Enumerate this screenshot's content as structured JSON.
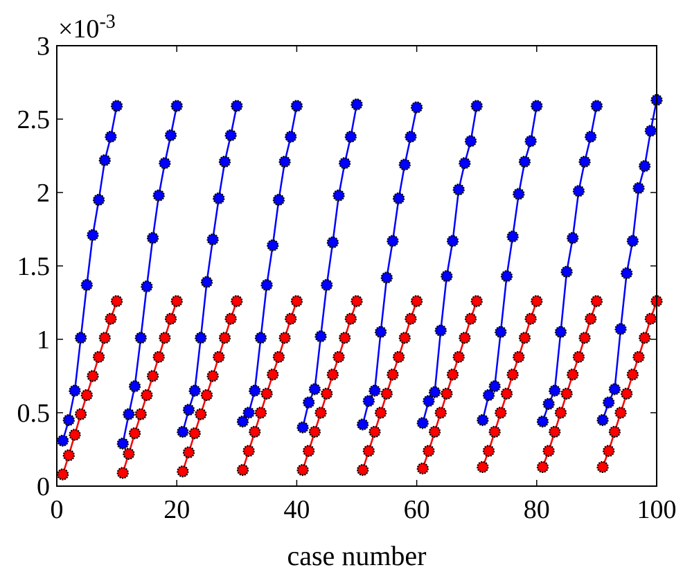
{
  "chart_data": {
    "type": "scatter",
    "title": "",
    "xlabel": "case number",
    "ylabel": "",
    "xlim": [
      0,
      100
    ],
    "ylim": [
      0,
      3
    ],
    "y_exponent_label": "×10",
    "y_exponent_power": "-3",
    "x_ticks": [
      0,
      20,
      40,
      60,
      80,
      100
    ],
    "x_tick_labels": [
      "0",
      "20",
      "40",
      "60",
      "80",
      "100"
    ],
    "y_ticks": [
      0,
      0.5,
      1,
      1.5,
      2,
      2.5,
      3
    ],
    "y_tick_labels": [
      "0",
      "0.5",
      "1",
      "1.5",
      "2",
      "2.5",
      "3"
    ],
    "grid": false,
    "colors": {
      "blue": "#0000ff",
      "red": "#ff0000",
      "marker_edge": "#000000"
    },
    "series": [
      {
        "color": "#0000ff",
        "segments": [
          [
            [
              1,
              0.31
            ],
            [
              2,
              0.45
            ],
            [
              3,
              0.65
            ],
            [
              4,
              1.01
            ],
            [
              5,
              1.37
            ],
            [
              6,
              1.71
            ],
            [
              7,
              1.95
            ],
            [
              8,
              2.22
            ],
            [
              9,
              2.38
            ],
            [
              10,
              2.59
            ]
          ],
          [
            [
              11,
              0.29
            ],
            [
              12,
              0.49
            ],
            [
              13,
              0.68
            ],
            [
              14,
              1.01
            ],
            [
              15,
              1.36
            ],
            [
              16,
              1.69
            ],
            [
              17,
              1.98
            ],
            [
              18,
              2.2
            ],
            [
              19,
              2.39
            ],
            [
              20,
              2.59
            ]
          ],
          [
            [
              21,
              0.37
            ],
            [
              22,
              0.52
            ],
            [
              23,
              0.65
            ],
            [
              24,
              1.01
            ],
            [
              25,
              1.39
            ],
            [
              26,
              1.68
            ],
            [
              27,
              1.96
            ],
            [
              28,
              2.21
            ],
            [
              29,
              2.39
            ],
            [
              30,
              2.59
            ]
          ],
          [
            [
              31,
              0.44
            ],
            [
              32,
              0.5
            ],
            [
              33,
              0.65
            ],
            [
              34,
              1.01
            ],
            [
              35,
              1.37
            ],
            [
              36,
              1.64
            ],
            [
              37,
              1.95
            ],
            [
              38,
              2.21
            ],
            [
              39,
              2.38
            ],
            [
              40,
              2.59
            ]
          ],
          [
            [
              41,
              0.4
            ],
            [
              42,
              0.57
            ],
            [
              43,
              0.66
            ],
            [
              44,
              1.02
            ],
            [
              45,
              1.37
            ],
            [
              46,
              1.66
            ],
            [
              47,
              1.98
            ],
            [
              48,
              2.2
            ],
            [
              49,
              2.38
            ],
            [
              50,
              2.6
            ]
          ],
          [
            [
              51,
              0.42
            ],
            [
              52,
              0.58
            ],
            [
              53,
              0.65
            ],
            [
              54,
              1.05
            ],
            [
              55,
              1.42
            ],
            [
              56,
              1.67
            ],
            [
              57,
              1.96
            ],
            [
              58,
              2.19
            ],
            [
              59,
              2.38
            ],
            [
              60,
              2.58
            ]
          ],
          [
            [
              61,
              0.43
            ],
            [
              62,
              0.58
            ],
            [
              63,
              0.64
            ],
            [
              64,
              1.06
            ],
            [
              65,
              1.43
            ],
            [
              66,
              1.67
            ],
            [
              67,
              2.02
            ],
            [
              68,
              2.2
            ],
            [
              69,
              2.35
            ],
            [
              70,
              2.59
            ]
          ],
          [
            [
              71,
              0.45
            ],
            [
              72,
              0.62
            ],
            [
              73,
              0.68
            ],
            [
              74,
              1.05
            ],
            [
              75,
              1.43
            ],
            [
              76,
              1.7
            ],
            [
              77,
              1.99
            ],
            [
              78,
              2.21
            ],
            [
              79,
              2.35
            ],
            [
              80,
              2.59
            ]
          ],
          [
            [
              81,
              0.44
            ],
            [
              82,
              0.56
            ],
            [
              83,
              0.65
            ],
            [
              84,
              1.05
            ],
            [
              85,
              1.46
            ],
            [
              86,
              1.69
            ],
            [
              87,
              2.01
            ],
            [
              88,
              2.21
            ],
            [
              89,
              2.38
            ],
            [
              90,
              2.59
            ]
          ],
          [
            [
              91,
              0.45
            ],
            [
              92,
              0.57
            ],
            [
              93,
              0.66
            ],
            [
              94,
              1.07
            ],
            [
              95,
              1.45
            ],
            [
              96,
              1.67
            ],
            [
              97,
              2.03
            ],
            [
              98,
              2.18
            ],
            [
              99,
              2.42
            ],
            [
              100,
              2.63
            ]
          ]
        ]
      },
      {
        "color": "#ff0000",
        "segments": [
          [
            [
              1,
              0.08
            ],
            [
              2,
              0.21
            ],
            [
              3,
              0.35
            ],
            [
              4,
              0.49
            ],
            [
              5,
              0.62
            ],
            [
              6,
              0.75
            ],
            [
              7,
              0.88
            ],
            [
              8,
              1.01
            ],
            [
              9,
              1.14
            ],
            [
              10,
              1.26
            ]
          ],
          [
            [
              11,
              0.09
            ],
            [
              12,
              0.22
            ],
            [
              13,
              0.36
            ],
            [
              14,
              0.49
            ],
            [
              15,
              0.62
            ],
            [
              16,
              0.75
            ],
            [
              17,
              0.88
            ],
            [
              18,
              1.01
            ],
            [
              19,
              1.14
            ],
            [
              20,
              1.26
            ]
          ],
          [
            [
              21,
              0.1
            ],
            [
              22,
              0.23
            ],
            [
              23,
              0.36
            ],
            [
              24,
              0.49
            ],
            [
              25,
              0.62
            ],
            [
              26,
              0.75
            ],
            [
              27,
              0.88
            ],
            [
              28,
              1.01
            ],
            [
              29,
              1.14
            ],
            [
              30,
              1.26
            ]
          ],
          [
            [
              31,
              0.11
            ],
            [
              32,
              0.24
            ],
            [
              33,
              0.37
            ],
            [
              34,
              0.5
            ],
            [
              35,
              0.63
            ],
            [
              36,
              0.76
            ],
            [
              37,
              0.88
            ],
            [
              38,
              1.01
            ],
            [
              39,
              1.14
            ],
            [
              40,
              1.26
            ]
          ],
          [
            [
              41,
              0.11
            ],
            [
              42,
              0.24
            ],
            [
              43,
              0.37
            ],
            [
              44,
              0.5
            ],
            [
              45,
              0.63
            ],
            [
              46,
              0.76
            ],
            [
              47,
              0.88
            ],
            [
              48,
              1.01
            ],
            [
              49,
              1.14
            ],
            [
              50,
              1.26
            ]
          ],
          [
            [
              51,
              0.11
            ],
            [
              52,
              0.24
            ],
            [
              53,
              0.37
            ],
            [
              54,
              0.5
            ],
            [
              55,
              0.63
            ],
            [
              56,
              0.76
            ],
            [
              57,
              0.88
            ],
            [
              58,
              1.01
            ],
            [
              59,
              1.14
            ],
            [
              60,
              1.26
            ]
          ],
          [
            [
              61,
              0.12
            ],
            [
              62,
              0.24
            ],
            [
              63,
              0.37
            ],
            [
              64,
              0.5
            ],
            [
              65,
              0.63
            ],
            [
              66,
              0.76
            ],
            [
              67,
              0.88
            ],
            [
              68,
              1.01
            ],
            [
              69,
              1.14
            ],
            [
              70,
              1.26
            ]
          ],
          [
            [
              71,
              0.13
            ],
            [
              72,
              0.24
            ],
            [
              73,
              0.37
            ],
            [
              74,
              0.5
            ],
            [
              75,
              0.63
            ],
            [
              76,
              0.76
            ],
            [
              77,
              0.88
            ],
            [
              78,
              1.01
            ],
            [
              79,
              1.14
            ],
            [
              80,
              1.26
            ]
          ],
          [
            [
              81,
              0.13
            ],
            [
              82,
              0.24
            ],
            [
              83,
              0.37
            ],
            [
              84,
              0.5
            ],
            [
              85,
              0.63
            ],
            [
              86,
              0.76
            ],
            [
              87,
              0.88
            ],
            [
              88,
              1.01
            ],
            [
              89,
              1.14
            ],
            [
              90,
              1.26
            ]
          ],
          [
            [
              91,
              0.13
            ],
            [
              92,
              0.24
            ],
            [
              93,
              0.37
            ],
            [
              94,
              0.5
            ],
            [
              95,
              0.63
            ],
            [
              96,
              0.76
            ],
            [
              97,
              0.88
            ],
            [
              98,
              1.01
            ],
            [
              99,
              1.14
            ],
            [
              100,
              1.26
            ]
          ]
        ]
      }
    ]
  }
}
